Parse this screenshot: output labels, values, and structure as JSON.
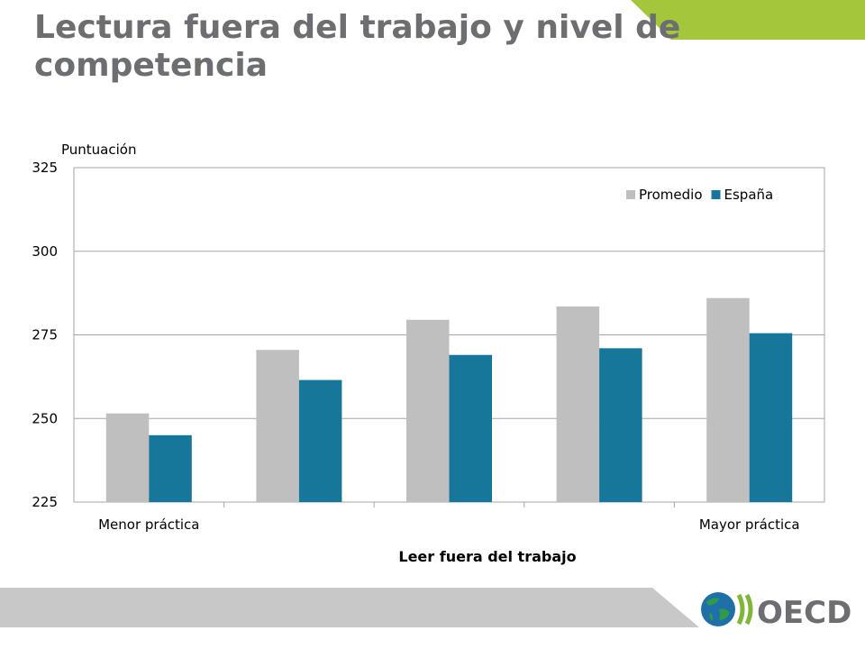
{
  "slide": {
    "title": "Lectura fuera del trabajo y nivel de competencia",
    "accent_color": "#a3c63a",
    "footer_color": "#c8c8c8"
  },
  "logo": {
    "text": "OECD",
    "icon": "globe-icon"
  },
  "chart_data": {
    "type": "bar",
    "ylabel": "Puntuación",
    "xlabel": "Leer fuera del trabajo",
    "ylim": [
      225,
      325
    ],
    "yticks": [
      225,
      250,
      275,
      300,
      325
    ],
    "categories": [
      "Menor práctica",
      "",
      "",
      "",
      "Mayor práctica"
    ],
    "series": [
      {
        "name": "Promedio",
        "color": "#bfbfbf",
        "values": [
          251.5,
          270.5,
          279.5,
          283.5,
          286.0
        ]
      },
      {
        "name": "España",
        "color": "#17779b",
        "values": [
          245.0,
          261.5,
          269.0,
          271.0,
          275.5
        ]
      }
    ],
    "grid": true,
    "legend": "top-right"
  }
}
